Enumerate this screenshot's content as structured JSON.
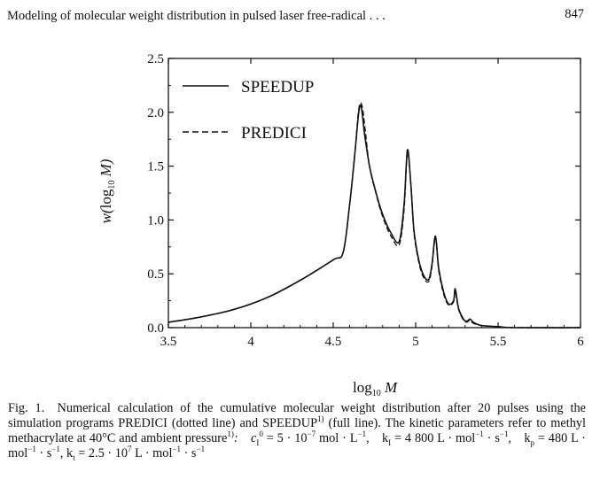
{
  "page": {
    "running_head": "Modeling of molecular weight distribution in pulsed laser free-radical . . .",
    "page_number": "847"
  },
  "chart_data": {
    "type": "line",
    "xlabel": "log10 M",
    "ylabel": "w(log10 M)",
    "xlim": [
      3.5,
      6
    ],
    "ylim": [
      0,
      2.5
    ],
    "xticks": [
      "3.5",
      "4",
      "4.5",
      "5",
      "5.5",
      "6"
    ],
    "yticks": [
      "0.0",
      "0.5",
      "1.0",
      "1.5",
      "2.0",
      "2.5"
    ],
    "legend_position": "top-left",
    "series": [
      {
        "name": "SPEEDUP",
        "style": "solid",
        "x": [
          3.5,
          3.7,
          3.9,
          4.1,
          4.3,
          4.5,
          4.56,
          4.6,
          4.63,
          4.655,
          4.67,
          4.69,
          4.72,
          4.76,
          4.8,
          4.85,
          4.9,
          4.93,
          4.95,
          4.97,
          4.99,
          5.02,
          5.05,
          5.08,
          5.1,
          5.12,
          5.14,
          5.17,
          5.2,
          5.23,
          5.24,
          5.26,
          5.29,
          5.31,
          5.33,
          5.35,
          5.4,
          5.5,
          5.6,
          6.0
        ],
        "y": [
          0.05,
          0.1,
          0.17,
          0.28,
          0.44,
          0.63,
          0.7,
          1.15,
          1.6,
          2.0,
          2.05,
          1.8,
          1.5,
          1.25,
          1.05,
          0.88,
          0.8,
          1.15,
          1.65,
          1.35,
          0.9,
          0.62,
          0.48,
          0.45,
          0.6,
          0.85,
          0.55,
          0.33,
          0.22,
          0.25,
          0.36,
          0.18,
          0.08,
          0.06,
          0.08,
          0.05,
          0.02,
          0.01,
          0.0,
          0.0
        ]
      },
      {
        "name": "PREDICI",
        "style": "dashed",
        "x": [
          3.5,
          3.7,
          3.9,
          4.1,
          4.3,
          4.5,
          4.56,
          4.6,
          4.63,
          4.655,
          4.675,
          4.695,
          4.72,
          4.76,
          4.8,
          4.85,
          4.9,
          4.93,
          4.95,
          4.97,
          4.99,
          5.02,
          5.05,
          5.08,
          5.1,
          5.12,
          5.14,
          5.17,
          5.2,
          5.23,
          5.24,
          5.26,
          5.29,
          5.31,
          5.33,
          5.35,
          5.4,
          5.5,
          5.6,
          6.0
        ],
        "y": [
          0.05,
          0.1,
          0.17,
          0.28,
          0.44,
          0.63,
          0.7,
          1.15,
          1.6,
          2.03,
          2.06,
          1.82,
          1.5,
          1.24,
          1.03,
          0.85,
          0.77,
          1.1,
          1.62,
          1.35,
          0.88,
          0.6,
          0.46,
          0.43,
          0.58,
          0.83,
          0.53,
          0.31,
          0.21,
          0.24,
          0.34,
          0.17,
          0.07,
          0.05,
          0.07,
          0.04,
          0.02,
          0.01,
          0.0,
          0.0
        ]
      }
    ]
  },
  "caption": {
    "text": "Fig. 1. Numerical calculation of the cumulative molecular weight distribution after 20 pulses using the simulation programs PREDICI (dotted line) and SPEEDUP",
    "ref1": "1)",
    "mid1": " (full line). The kinetic parameters refer to methyl methacrylate at 40°C and ambient pressure",
    "ref2": "1)",
    "c1": ": c",
    "c1sub": "I",
    "c1sup": "0",
    "c1rest": " = 5 · 10",
    "c1exp": "−7",
    "c1unit": " mol · L",
    "c1unitexp": "−1",
    "ki": ", k",
    "kisub": "I",
    "kirest": " = 4 800 L · mol",
    "kiexp1": "−1",
    "kis": " · s",
    "kiexp2": "−1",
    "kp": ", k",
    "kpsub": "p",
    "kprest": " = 480 L · mol",
    "kpexp1": "−1",
    "kps": " · s",
    "kpexp2": "−1",
    "kt": ", k",
    "ktsub": "t",
    "ktrest": " = 2.5 · 10",
    "ktexp": "7",
    "ktunit": " L · mol",
    "ktexp1": "−1",
    "kts": " · s",
    "ktexp2": "−1"
  }
}
